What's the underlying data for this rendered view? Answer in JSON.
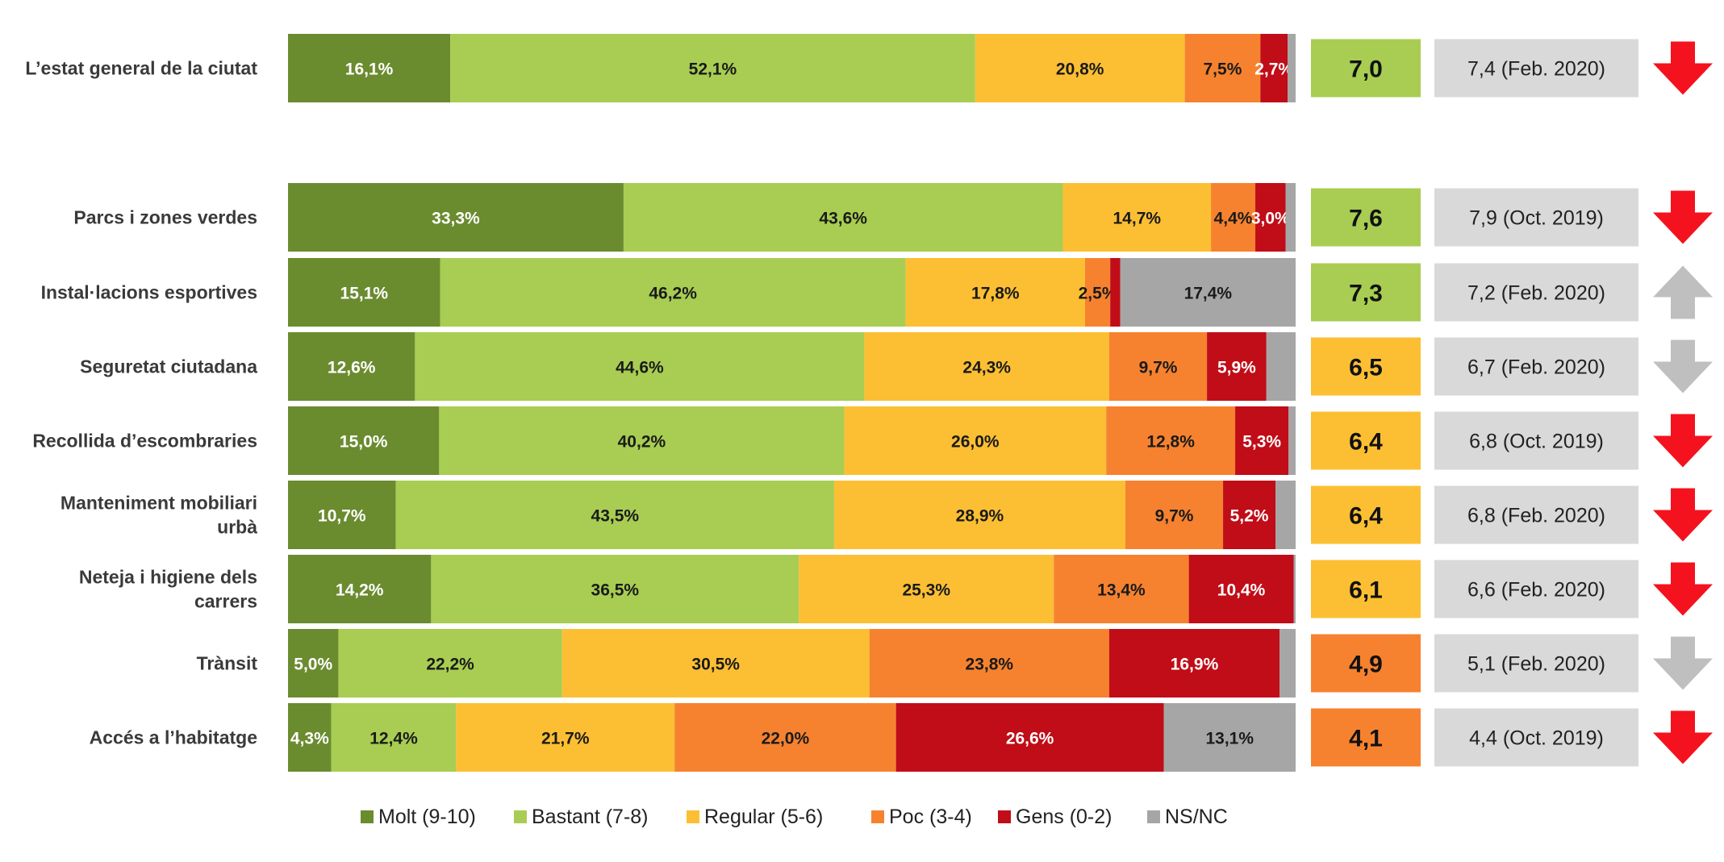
{
  "chart_data": {
    "type": "bar",
    "orientation": "horizontal",
    "stacked": true,
    "normalized": true,
    "xlim": [
      0,
      100
    ],
    "unit": "%",
    "legend_position": "bottom",
    "legend": [
      {
        "key": "molt",
        "label": "Molt (9-10)"
      },
      {
        "key": "bastant",
        "label": "Bastant (7-8)"
      },
      {
        "key": "regular",
        "label": "Regular (5-6)"
      },
      {
        "key": "poc",
        "label": "Poc (3-4)"
      },
      {
        "key": "gens",
        "label": "Gens (0-2)"
      },
      {
        "key": "nsnc",
        "label": "NS/NC"
      }
    ],
    "colors": {
      "molt": "#6B8B2F",
      "bastant": "#A8CD52",
      "regular": "#FCBF33",
      "poc": "#F6822F",
      "gens": "#C00D18",
      "nsnc": "#A6A6A6",
      "score_green": "#A8CD52",
      "score_yellow": "#FCBF33",
      "score_orange": "#F6822F",
      "prev_bg": "#D9D9D9",
      "arrow_red": "#F4121E",
      "arrow_grey": "#BFBFBF"
    },
    "rows": [
      {
        "category": "L’estat general de la ciutat",
        "values": [
          16.1,
          52.1,
          20.8,
          7.5,
          2.7,
          0.8
        ],
        "labels": [
          "16,1%",
          "52,1%",
          "20,8%",
          "7,5%",
          "2,7%",
          ""
        ],
        "score": "7,0",
        "score_color": "score_green",
        "previous": "7,4 (Feb. 2020)",
        "trend": "down",
        "trend_color": "arrow_red"
      },
      {
        "category": "Parcs i zones verdes",
        "values": [
          33.3,
          43.6,
          14.7,
          4.4,
          3.0,
          1.0
        ],
        "labels": [
          "33,3%",
          "43,6%",
          "14,7%",
          "4,4%",
          "3,0%",
          ""
        ],
        "score": "7,6",
        "score_color": "score_green",
        "previous": "7,9 (Oct. 2019)",
        "trend": "down",
        "trend_color": "arrow_red"
      },
      {
        "category": "Instal·lacions esportives",
        "values": [
          15.1,
          46.2,
          17.8,
          2.5,
          1.0,
          17.4
        ],
        "labels": [
          "15,1%",
          "46,2%",
          "17,8%",
          "2,5%",
          "",
          "17,4%"
        ],
        "score": "7,3",
        "score_color": "score_green",
        "previous": "7,2 (Feb. 2020)",
        "trend": "up",
        "trend_color": "arrow_grey"
      },
      {
        "category": "Seguretat ciutadana",
        "values": [
          12.6,
          44.6,
          24.3,
          9.7,
          5.9,
          2.9
        ],
        "labels": [
          "12,6%",
          "44,6%",
          "24,3%",
          "9,7%",
          "5,9%",
          ""
        ],
        "score": "6,5",
        "score_color": "score_yellow",
        "previous": "6,7 (Feb. 2020)",
        "trend": "down",
        "trend_color": "arrow_grey"
      },
      {
        "category": "Recollida d’escombraries",
        "values": [
          15.0,
          40.2,
          26.0,
          12.8,
          5.3,
          0.7
        ],
        "labels": [
          "15,0%",
          "40,2%",
          "26,0%",
          "12,8%",
          "5,3%",
          ""
        ],
        "score": "6,4",
        "score_color": "score_yellow",
        "previous": "6,8 (Oct. 2019)",
        "trend": "down",
        "trend_color": "arrow_red"
      },
      {
        "category": [
          "Manteniment mobiliari",
          "urbà"
        ],
        "values": [
          10.7,
          43.5,
          28.9,
          9.7,
          5.2,
          2.0
        ],
        "labels": [
          "10,7%",
          "43,5%",
          "28,9%",
          "9,7%",
          "5,2%",
          ""
        ],
        "score": "6,4",
        "score_color": "score_yellow",
        "previous": "6,8 (Feb. 2020)",
        "trend": "down",
        "trend_color": "arrow_red"
      },
      {
        "category": [
          "Neteja i higiene dels",
          "carrers"
        ],
        "values": [
          14.2,
          36.5,
          25.3,
          13.4,
          10.4,
          0.2
        ],
        "labels": [
          "14,2%",
          "36,5%",
          "25,3%",
          "13,4%",
          "10,4%",
          ""
        ],
        "score": "6,1",
        "score_color": "score_yellow",
        "previous": "6,6 (Feb. 2020)",
        "trend": "down",
        "trend_color": "arrow_red"
      },
      {
        "category": "Trànsit",
        "values": [
          5.0,
          22.2,
          30.5,
          23.8,
          16.9,
          1.6
        ],
        "labels": [
          "5,0%",
          "22,2%",
          "30,5%",
          "23,8%",
          "16,9%",
          ""
        ],
        "score": "4,9",
        "score_color": "score_orange",
        "previous": "5,1 (Feb. 2020)",
        "trend": "down",
        "trend_color": "arrow_grey"
      },
      {
        "category": "Accés a l’habitatge",
        "values": [
          4.3,
          12.4,
          21.7,
          22.0,
          26.6,
          13.1
        ],
        "labels": [
          "4,3%",
          "12,4%",
          "21,7%",
          "22,0%",
          "26,6%",
          "13,1%"
        ],
        "score": "4,1",
        "score_color": "score_orange",
        "previous": "4,4 (Oct. 2019)",
        "trend": "down",
        "trend_color": "arrow_red"
      }
    ]
  }
}
